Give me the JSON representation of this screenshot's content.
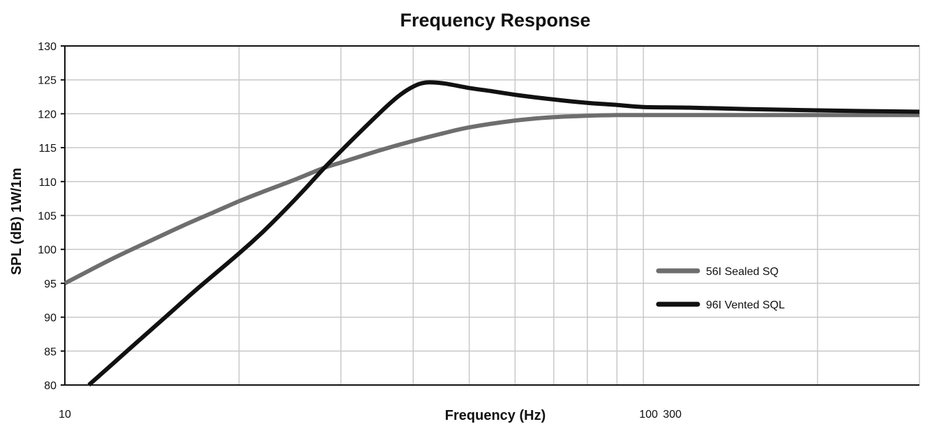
{
  "chart_data": {
    "type": "line",
    "title": "Frequency Response",
    "xlabel": "Frequency (Hz)",
    "ylabel": "SPL (dB) 1W/1m",
    "x_scale": "log",
    "xlim": [
      10,
      300
    ],
    "ylim": [
      80,
      130
    ],
    "x_ticks_labeled": [
      "10",
      "100",
      "300"
    ],
    "y_ticks": [
      80,
      85,
      90,
      95,
      100,
      105,
      110,
      115,
      120,
      125,
      130
    ],
    "x_gridlines": [
      20,
      30,
      40,
      50,
      60,
      70,
      80,
      90,
      100,
      200,
      300
    ],
    "grid": true,
    "legend_position": "right",
    "series": [
      {
        "name": "56I Sealed SQ",
        "color": "#6e6e6e",
        "x": [
          10,
          12,
          14,
          16,
          18,
          20,
          22,
          25,
          28,
          30,
          35,
          40,
          45,
          50,
          60,
          70,
          80,
          90,
          100,
          120,
          150,
          200,
          300
        ],
        "y": [
          95,
          98.5,
          101.2,
          103.5,
          105.4,
          107.1,
          108.5,
          110.3,
          112,
          112.8,
          114.6,
          116,
          117.1,
          118,
          119,
          119.5,
          119.7,
          119.8,
          119.8,
          119.8,
          119.8,
          119.8,
          119.8
        ]
      },
      {
        "name": "96I Vented SQL",
        "color": "#111111",
        "x": [
          11,
          13,
          15,
          17,
          20,
          22,
          24,
          26,
          28,
          30,
          33,
          36,
          38,
          40,
          42,
          45,
          50,
          55,
          60,
          70,
          80,
          90,
          100,
          120,
          150,
          200,
          300
        ],
        "y": [
          80,
          85.5,
          90.2,
          94.3,
          99.4,
          102.6,
          105.8,
          108.9,
          111.9,
          114.5,
          118,
          121.1,
          122.8,
          124,
          124.6,
          124.5,
          123.8,
          123.3,
          122.8,
          122.1,
          121.6,
          121.3,
          121,
          120.9,
          120.7,
          120.5,
          120.3
        ]
      }
    ]
  }
}
